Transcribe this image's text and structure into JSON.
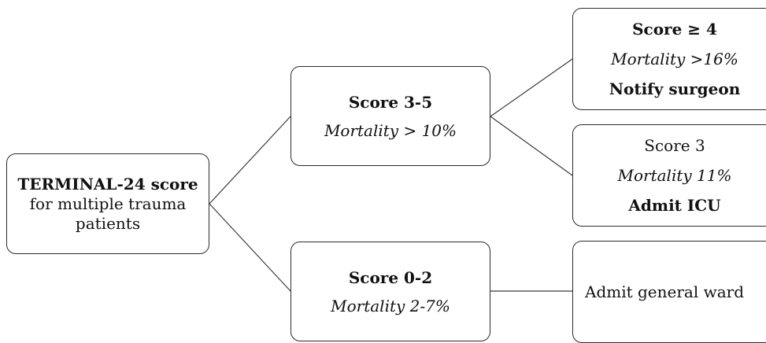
{
  "root": {
    "line1": "TERMINAL-24 score",
    "line2": "for multiple trauma",
    "line3": "patients"
  },
  "score_3_5": {
    "title": "Score 3-5",
    "mortality": "Mortality > 10%"
  },
  "score_0_2": {
    "title": "Score 0-2",
    "mortality": "Mortality 2-7%"
  },
  "score_ge_4": {
    "title": "Score ≥ 4",
    "mortality": "Mortality >16%",
    "action": "Notify surgeon"
  },
  "score_3": {
    "title": "Score 3",
    "mortality": "Mortality 11%",
    "action": "Admit ICU"
  },
  "general_ward": {
    "action": "Admit general ward"
  },
  "colors": {
    "border": "#2b2b2b",
    "connector": "#3a3a3a",
    "text": "#111111"
  }
}
